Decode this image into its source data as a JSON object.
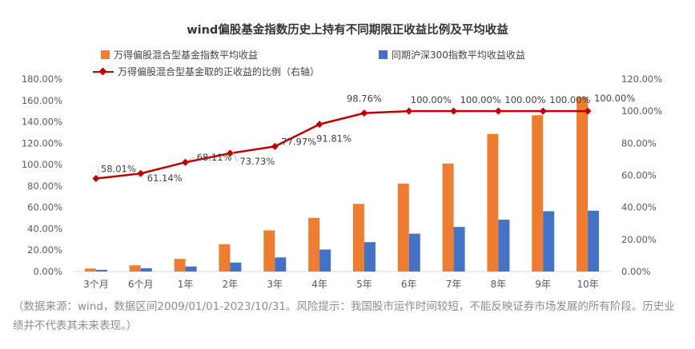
{
  "chart_data": {
    "type": "bar",
    "title": "wind偏股基金指数历史上持有不同期限正收益比例及平均收益",
    "categories": [
      "3个月",
      "6个月",
      "1年",
      "2年",
      "3年",
      "4年",
      "5年",
      "6年",
      "7年",
      "8年",
      "9年",
      "10年"
    ],
    "series": [
      {
        "name": "万得偏股混合型基金指数平均收益",
        "kind": "bar",
        "axis": "left",
        "color": "#ED7D31",
        "values": [
          2.8,
          5.8,
          11.8,
          25.5,
          38.5,
          50.2,
          63.3,
          82.3,
          101.0,
          128.7,
          146.2,
          163.3
        ]
      },
      {
        "name": "同期沪深300指数平均收益收益",
        "kind": "bar",
        "axis": "left",
        "color": "#4472C4",
        "values": [
          1.6,
          3.1,
          4.7,
          8.4,
          13.2,
          20.6,
          27.5,
          35.4,
          41.7,
          48.5,
          56.4,
          56.9
        ]
      },
      {
        "name": "万得偏股混合型基金取的正收益的比例（右轴）",
        "kind": "line",
        "axis": "right",
        "color": "#C00000",
        "values": [
          58.01,
          61.14,
          68.11,
          73.73,
          77.97,
          91.81,
          98.76,
          100.0,
          100.0,
          100.0,
          100.0,
          100.0
        ],
        "labels": [
          "58.01%",
          "61.14%",
          "68.11%",
          "73.73%",
          "77.97%",
          "91.81%",
          "98.76%",
          "100.00%",
          "100.00%",
          "100.00%",
          "100.00%",
          "100.00%"
        ]
      }
    ],
    "y_left": {
      "ylim": [
        0,
        180
      ],
      "ticks": [
        0,
        20,
        40,
        60,
        80,
        100,
        120,
        140,
        160,
        180
      ],
      "tick_labels": [
        "0.00%",
        "20.00%",
        "40.00%",
        "60.00%",
        "80.00%",
        "100.00%",
        "120.00%",
        "140.00%",
        "160.00%",
        "180.00%"
      ]
    },
    "y_right": {
      "ylim": [
        0,
        120
      ],
      "ticks": [
        0,
        20,
        40,
        60,
        80,
        100,
        120
      ],
      "tick_labels": [
        "0.00%",
        "20.00%",
        "40.00%",
        "60.00%",
        "80.00%",
        "100.00%",
        "120.00%"
      ]
    },
    "grid": false,
    "legend_position": "top"
  },
  "footnote": "（数据来源：wind，数据区间2009/01/01-2023/10/31。风险提示：我国股市运作时间较短，不能反映证券市场发展的所有阶段。历史业绩并不代表其未来表现。）"
}
